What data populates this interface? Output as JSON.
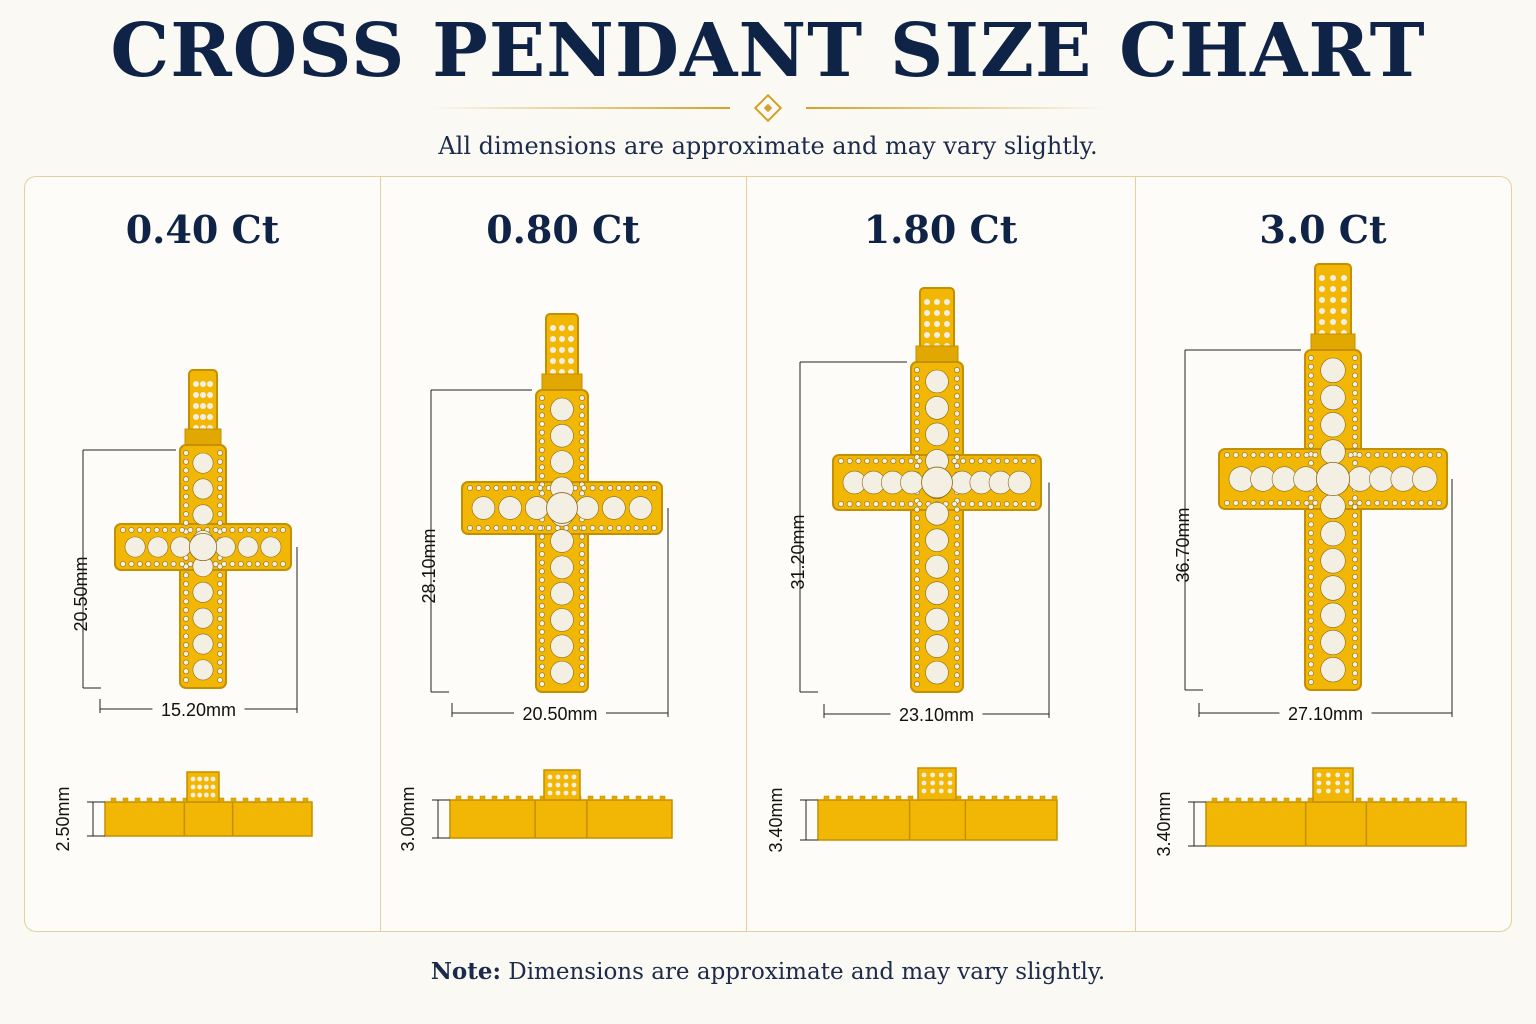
{
  "header": {
    "title": "CROSS PENDANT SIZE CHART",
    "subtitle": "All dimensions are approximate and may vary slightly."
  },
  "colors": {
    "navy": "#0f2347",
    "gold": "#f2b705",
    "gold_dark": "#c48f00",
    "stone": "#f4efe3",
    "border": "#e6cf9a"
  },
  "pendants": [
    {
      "carat": "0.40 Ct",
      "height": "20.50mm",
      "width": "15.20mm",
      "thickness": "2.50mm",
      "stones_vertical": 9,
      "stones_arm": 3
    },
    {
      "carat": "0.80 Ct",
      "height": "28.10mm",
      "width": "20.50mm",
      "thickness": "3.00mm",
      "stones_vertical": 11,
      "stones_arm": 3
    },
    {
      "carat": "1.80 Ct",
      "height": "31.20mm",
      "width": "23.10mm",
      "thickness": "3.40mm",
      "stones_vertical": 12,
      "stones_arm": 4
    },
    {
      "carat": "3.0 Ct",
      "height": "36.70mm",
      "width": "27.10mm",
      "thickness": "3.40mm",
      "stones_vertical": 12,
      "stones_arm": 4
    }
  ],
  "note": {
    "label": "Note:",
    "text": " Dimensions are approximate and may vary slightly."
  }
}
